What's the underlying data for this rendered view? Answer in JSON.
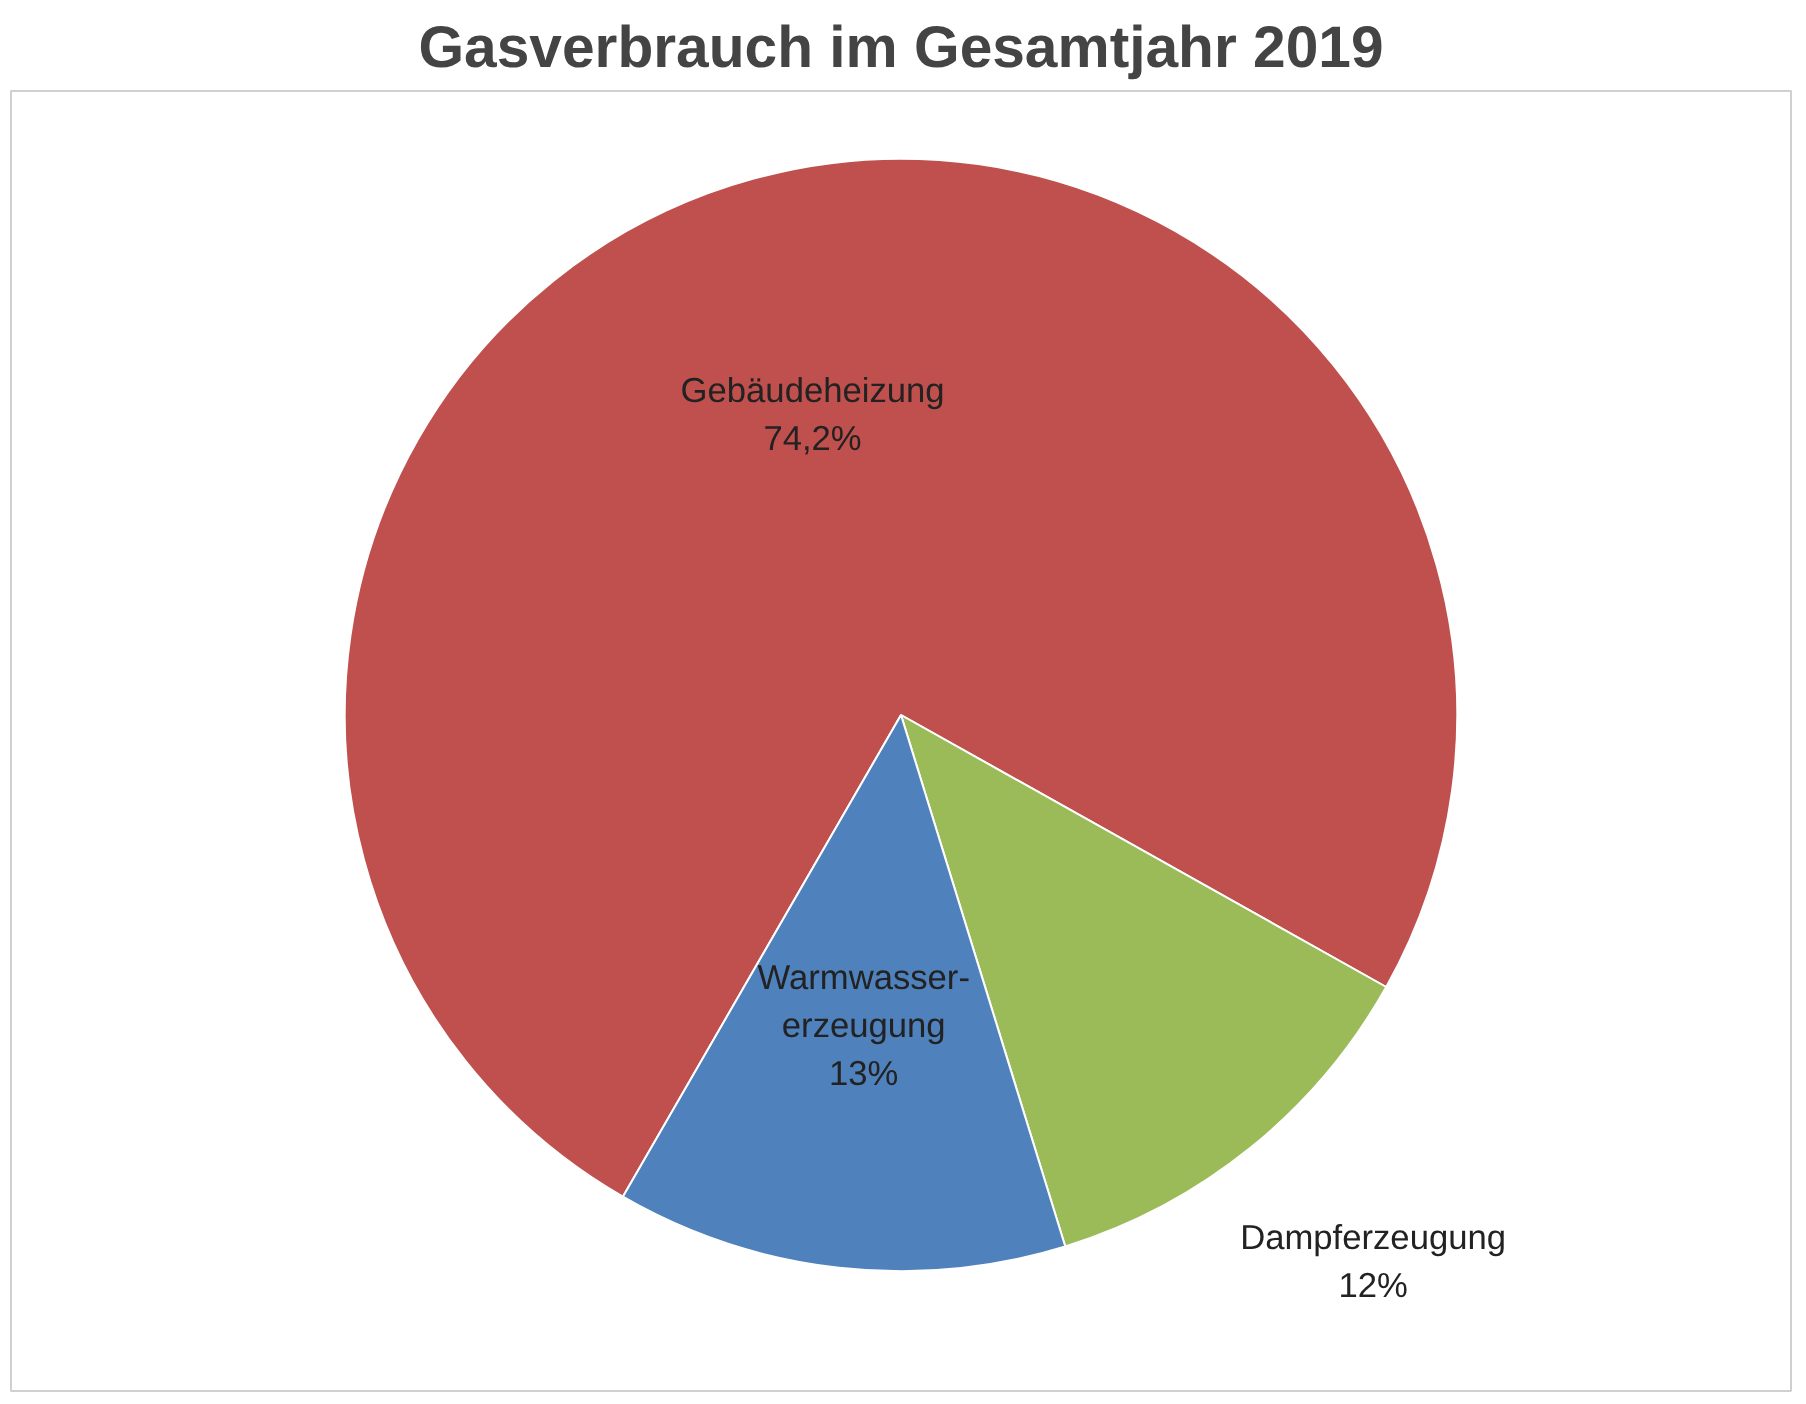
{
  "chart_data": {
    "type": "pie",
    "title": "Gasverbrauch im Gesamtjahr 2019",
    "categories": [
      "Gebäudeheizung",
      "Dampferzeugung",
      "Warmwasser-erzeugung"
    ],
    "values": [
      74.2,
      12,
      13
    ],
    "value_labels": [
      "74,2%",
      "12%",
      "13%"
    ],
    "colors": [
      "#c0504d",
      "#9bbb59",
      "#4f81bd"
    ]
  }
}
